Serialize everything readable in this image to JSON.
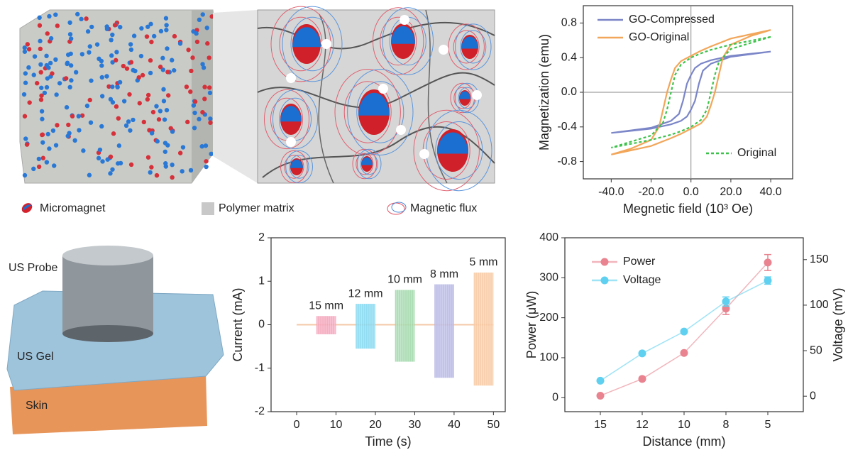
{
  "illustration": {
    "legend": [
      "Micromagnet",
      "Polymer matrix",
      "Magnetic flux"
    ],
    "labels": [
      "US Probe",
      "US Gel",
      "Skin"
    ]
  },
  "chart_data": [
    {
      "type": "line",
      "x_label": "Megnetic field (10³ Oe)",
      "y_label": "Magnetization (emu)",
      "xlim": [
        -54,
        51
      ],
      "ylim": [
        -1,
        1
      ],
      "xticks": [
        {
          "value": -40,
          "label": "-40.0"
        },
        {
          "value": -20,
          "label": "-20.0"
        },
        {
          "value": 0,
          "label": "0.0"
        },
        {
          "value": 20,
          "label": "20.0"
        },
        {
          "value": 40,
          "label": "40.0"
        }
      ],
      "yticks": [
        0.8,
        0.4,
        {
          "value": 0,
          "label": "0.0"
        },
        -0.4,
        -0.8
      ],
      "zero_lines": true,
      "legend": "upper left",
      "series": [
        {
          "name": "GO-Compressed",
          "color": "#7b86c8",
          "x": [
            40,
            20,
            10,
            5,
            2,
            0,
            -2,
            -3,
            -4,
            -6,
            -10,
            -20,
            -40,
            -20,
            -10,
            -5,
            -2,
            0,
            2,
            3,
            4,
            6,
            10,
            20,
            40
          ],
          "values": [
            0.47,
            0.42,
            0.37,
            0.33,
            0.28,
            0.2,
            0.1,
            0,
            -0.1,
            -0.25,
            -0.33,
            -0.41,
            -0.47,
            -0.42,
            -0.37,
            -0.33,
            -0.28,
            -0.2,
            -0.1,
            0,
            0.1,
            0.25,
            0.33,
            0.41,
            0.47
          ]
        },
        {
          "name": "GO-Original",
          "color": "#f2a65a",
          "x": [
            40,
            30,
            20,
            10,
            5,
            0,
            -5,
            -8,
            -10,
            -12,
            -14,
            -16,
            -20,
            -30,
            -40,
            -30,
            -20,
            -10,
            -5,
            0,
            5,
            8,
            10,
            12,
            14,
            16,
            20,
            30,
            40
          ],
          "values": [
            0.72,
            0.67,
            0.62,
            0.53,
            0.48,
            0.42,
            0.36,
            0.28,
            0.15,
            0,
            -0.2,
            -0.4,
            -0.55,
            -0.65,
            -0.72,
            -0.67,
            -0.62,
            -0.53,
            -0.48,
            -0.42,
            -0.36,
            -0.28,
            -0.15,
            0,
            0.2,
            0.4,
            0.55,
            0.65,
            0.72
          ]
        },
        {
          "name": "Original",
          "color": "#3cc24a",
          "dash": true,
          "x": [
            40,
            20,
            10,
            5,
            0,
            -5,
            -8,
            -10,
            -12,
            -14,
            -20,
            -40,
            -20,
            -10,
            -5,
            0,
            5,
            8,
            10,
            12,
            14,
            20,
            40
          ],
          "values": [
            0.64,
            0.55,
            0.49,
            0.45,
            0.4,
            0.32,
            0.2,
            0,
            -0.2,
            -0.35,
            -0.5,
            -0.64,
            -0.55,
            -0.49,
            -0.45,
            -0.4,
            -0.32,
            -0.2,
            0,
            0.2,
            0.35,
            0.5,
            0.64
          ]
        }
      ]
    },
    {
      "type": "range",
      "x_label": "Time (s)",
      "y_label": "Current (mA)",
      "xlim": [
        -6.5,
        53
      ],
      "ylim": [
        -2,
        2
      ],
      "xticks": [
        0,
        10,
        20,
        30,
        40,
        50
      ],
      "yticks": [
        2,
        1,
        0,
        -1,
        -2
      ],
      "baseline": true,
      "series": [
        {
          "name": "15 mm",
          "color": "#f4a0b8",
          "x": [
            5,
            10
          ],
          "values": [
            -0.22,
            0.2
          ]
        },
        {
          "name": "12 mm",
          "color": "#7fd7f0",
          "x": [
            15,
            20
          ],
          "values": [
            -0.55,
            0.48
          ]
        },
        {
          "name": "10 mm",
          "color": "#9ed8a8",
          "x": [
            25,
            30
          ],
          "values": [
            -0.85,
            0.8
          ]
        },
        {
          "name": "8 mm",
          "color": "#b4b4e4",
          "x": [
            35,
            40
          ],
          "values": [
            -1.22,
            0.93
          ]
        },
        {
          "name": "5 mm",
          "color": "#f8c8a0",
          "x": [
            45,
            50
          ],
          "values": [
            -1.4,
            1.2
          ]
        }
      ]
    },
    {
      "type": "line",
      "x_label": "Distance (mm)",
      "y_label": "Power (μW)",
      "y2_label": "Voltage (mV)",
      "categories": [
        "15",
        "12",
        "10",
        "8",
        "5"
      ],
      "ylim": [
        -35,
        400
      ],
      "yticks": [
        0,
        100,
        200,
        300,
        400
      ],
      "y2lim": [
        -17,
        174
      ],
      "y2ticks": [
        0,
        50,
        100,
        150
      ],
      "markers": true,
      "legend": "upper left",
      "series": [
        {
          "name": "Power",
          "color": "#e8838f",
          "values": [
            5,
            47,
            112,
            223,
            338
          ],
          "errors": [
            0,
            0,
            0,
            15,
            20
          ]
        },
        {
          "name": "Voltage",
          "color": "#5fd0f0",
          "axis": "y2",
          "values": [
            17,
            47,
            71,
            104,
            127
          ],
          "errors": [
            0,
            0,
            0,
            5,
            4
          ]
        }
      ]
    }
  ]
}
